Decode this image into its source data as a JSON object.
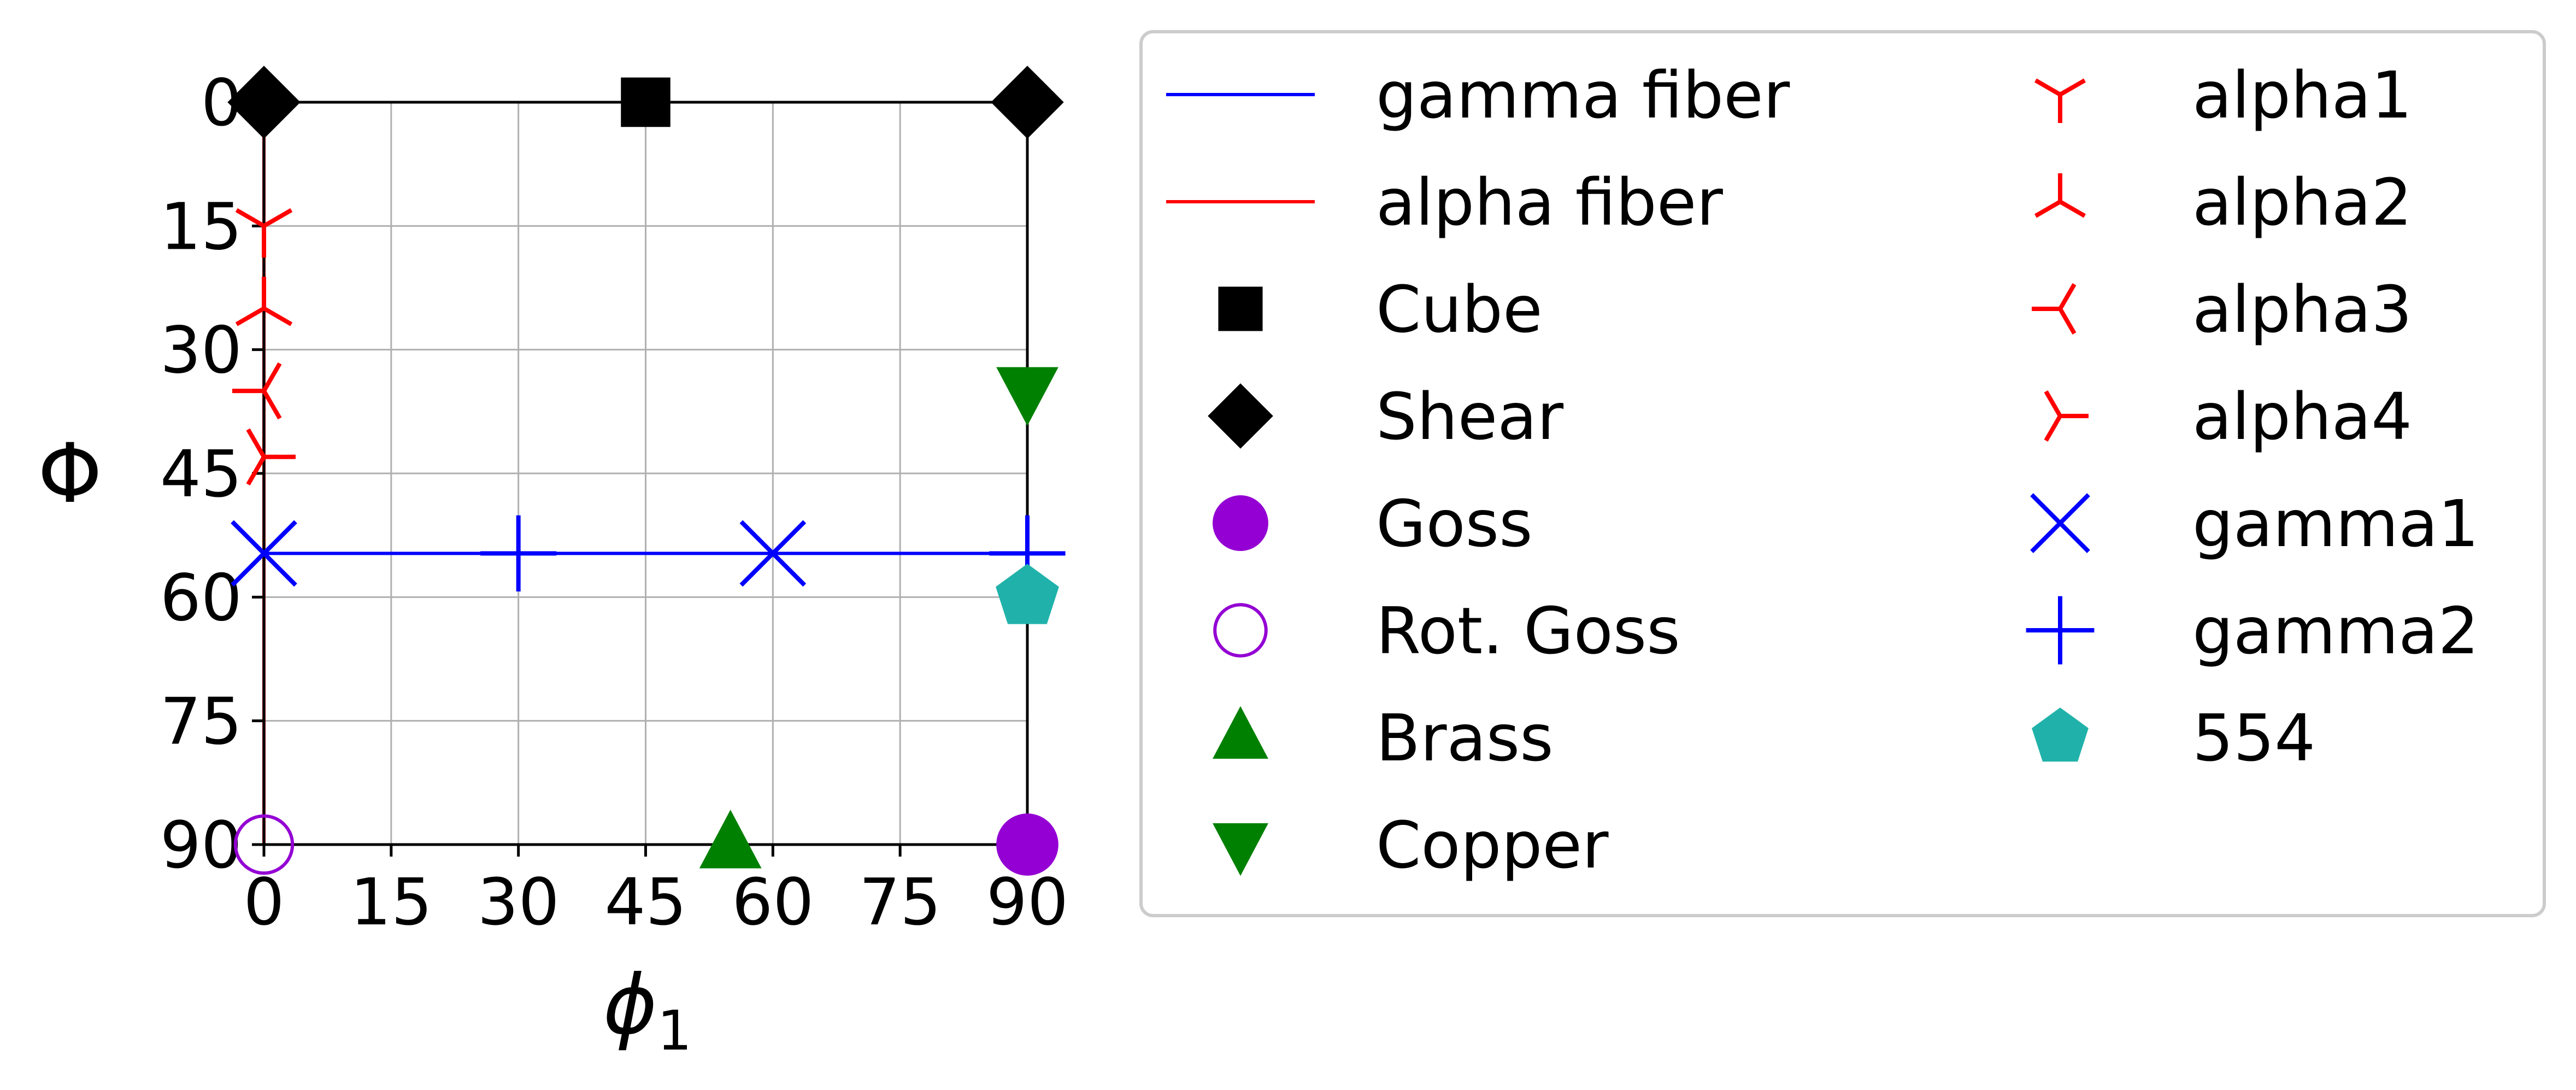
{
  "chart_data": {
    "type": "scatter",
    "xlabel_symbol": "ϕ",
    "xlabel_sub": "1",
    "ylabel": "Φ",
    "xlim": [
      0,
      90
    ],
    "ylim": [
      0,
      90
    ],
    "y_inverted": true,
    "grid": true,
    "xticks": [
      0,
      15,
      30,
      45,
      60,
      75,
      90
    ],
    "yticks": [
      0,
      15,
      30,
      45,
      60,
      75,
      90
    ],
    "xtick_labels": [
      "0",
      "15",
      "30",
      "45",
      "60",
      "75",
      "90"
    ],
    "ytick_labels": [
      "0",
      "15",
      "30",
      "45",
      "60",
      "75",
      "90"
    ],
    "lines": [
      {
        "name": "gamma fiber",
        "color": "#0000ff",
        "x": [
          0,
          90
        ],
        "y": [
          54.7,
          54.7
        ]
      },
      {
        "name": "alpha fiber",
        "color": "#ff0000",
        "x": [
          0,
          0
        ],
        "y": [
          0,
          90
        ]
      }
    ],
    "series": [
      {
        "name": "Cube",
        "marker": "square",
        "color": "#000000",
        "filled": true,
        "points": [
          [
            45,
            0
          ]
        ]
      },
      {
        "name": "Shear",
        "marker": "diamond",
        "color": "#000000",
        "filled": true,
        "points": [
          [
            0,
            0
          ],
          [
            90,
            0
          ]
        ]
      },
      {
        "name": "Goss",
        "marker": "circle",
        "color": "#9400d3",
        "filled": true,
        "points": [
          [
            90,
            90
          ]
        ]
      },
      {
        "name": "Rot. Goss",
        "marker": "circle",
        "color": "#9400d3",
        "filled": false,
        "points": [
          [
            0,
            90
          ]
        ]
      },
      {
        "name": "Brass",
        "marker": "triangle-up",
        "color": "#008000",
        "filled": true,
        "points": [
          [
            55,
            90
          ]
        ]
      },
      {
        "name": "Copper",
        "marker": "triangle-down",
        "color": "#008000",
        "filled": true,
        "points": [
          [
            90,
            35
          ]
        ]
      },
      {
        "name": "alpha1",
        "marker": "tri-down",
        "color": "#ff0000",
        "filled": false,
        "points": [
          [
            0,
            15
          ]
        ]
      },
      {
        "name": "alpha2",
        "marker": "tri-up",
        "color": "#ff0000",
        "filled": false,
        "points": [
          [
            0,
            25
          ]
        ]
      },
      {
        "name": "alpha3",
        "marker": "tri-left",
        "color": "#ff0000",
        "filled": false,
        "points": [
          [
            0,
            35
          ]
        ]
      },
      {
        "name": "alpha4",
        "marker": "tri-right",
        "color": "#ff0000",
        "filled": false,
        "points": [
          [
            0,
            43
          ]
        ]
      },
      {
        "name": "gamma1",
        "marker": "x",
        "color": "#0000ff",
        "filled": false,
        "points": [
          [
            0,
            54.7
          ],
          [
            60,
            54.7
          ]
        ]
      },
      {
        "name": "gamma2",
        "marker": "plus",
        "color": "#0000ff",
        "filled": false,
        "points": [
          [
            30,
            54.7
          ],
          [
            90,
            54.7
          ]
        ]
      },
      {
        "name": "554",
        "marker": "pentagon",
        "color": "#20b2aa",
        "filled": true,
        "points": [
          [
            90,
            60
          ]
        ]
      }
    ],
    "legend": {
      "placement": "outside-right",
      "columns": 2,
      "entries": [
        "gamma fiber",
        "alpha fiber",
        "Cube",
        "Shear",
        "Goss",
        "Rot. Goss",
        "Brass",
        "Copper",
        "alpha1",
        "alpha2",
        "alpha3",
        "alpha4",
        "gamma1",
        "gamma2",
        "554"
      ]
    }
  }
}
